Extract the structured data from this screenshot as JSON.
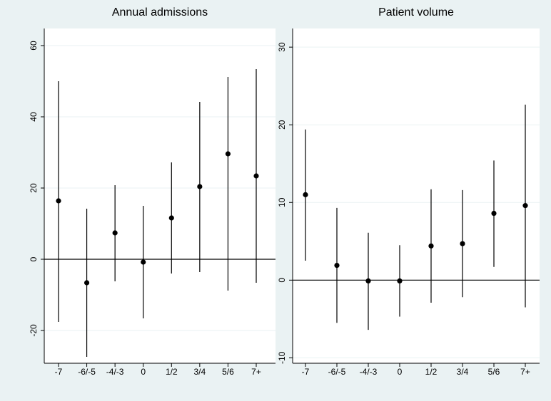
{
  "chart_data": [
    {
      "type": "errorbar",
      "title": "Annual admissions",
      "categories": [
        "-7",
        "-6/-5",
        "-4/-3",
        "0",
        "1/2",
        "3/4",
        "5/6",
        "7+"
      ],
      "values": [
        16.4,
        -6.6,
        7.4,
        -0.8,
        11.6,
        20.4,
        29.6,
        23.4
      ],
      "lower": [
        -17.6,
        -27.4,
        -6.2,
        -16.6,
        -4,
        -3.6,
        -8.8,
        -6.6
      ],
      "upper": [
        50,
        14.2,
        20.8,
        15,
        27.2,
        44.2,
        51.2,
        53.4
      ],
      "color": "#000000",
      "refline": 0,
      "ylim": [
        -29.2,
        64.8
      ],
      "yticks": [
        -20,
        0,
        20,
        40,
        60
      ],
      "grid": true
    },
    {
      "type": "errorbar",
      "title": "Patient volume",
      "categories": [
        "-7",
        "-6/-5",
        "-4/-3",
        "0",
        "1/2",
        "3/4",
        "5/6",
        "7+"
      ],
      "values": [
        11,
        1.9,
        -0.1,
        -0.1,
        4.4,
        4.7,
        8.6,
        9.6
      ],
      "lower": [
        2.5,
        -5.5,
        -6.4,
        -4.7,
        -2.9,
        -2.2,
        1.7,
        -3.5
      ],
      "upper": [
        19.4,
        9.3,
        6.1,
        4.5,
        11.7,
        11.6,
        15.4,
        22.6
      ],
      "color": "#000000",
      "refline": 0,
      "ylim": [
        -10.7,
        32.4
      ],
      "yticks": [
        -10,
        0,
        10,
        20,
        30
      ],
      "grid": true
    }
  ]
}
